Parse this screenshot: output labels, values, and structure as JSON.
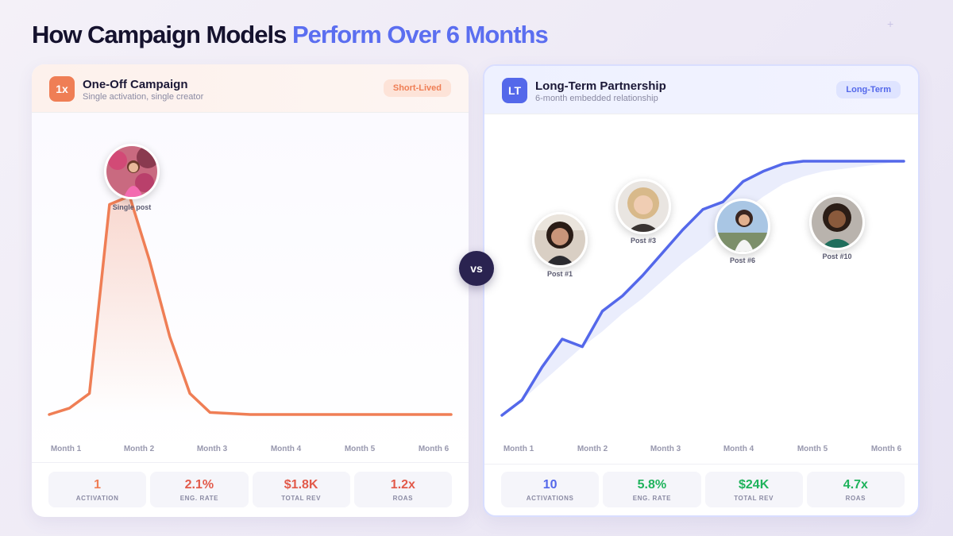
{
  "title": {
    "part1": "How Campaign Models",
    "part2": "Perform Over 6 Months"
  },
  "vs_label": "vs",
  "left": {
    "badge": "1x",
    "title": "One-Off Campaign",
    "subtitle": "Single activation, single creator",
    "pill": "Short-Lived",
    "color": "#ef7e55",
    "stats": [
      {
        "value": "1",
        "label": "ACTIVATION"
      },
      {
        "value": "2.1%",
        "label": "ENG. RATE"
      },
      {
        "value": "$1.8K",
        "label": "TOTAL REV"
      },
      {
        "value": "1.2x",
        "label": "ROAS"
      }
    ],
    "avatars": [
      {
        "label": "Single post"
      }
    ]
  },
  "right": {
    "badge": "LT",
    "title": "Long-Term Partnership",
    "subtitle": "6-month embedded relationship",
    "pill": "Long-Term",
    "color": "#5468ea",
    "stats": [
      {
        "value": "10",
        "label": "ACTIVATIONS"
      },
      {
        "value": "5.8%",
        "label": "ENG. RATE"
      },
      {
        "value": "$24K",
        "label": "TOTAL REV"
      },
      {
        "value": "4.7x",
        "label": "ROAS"
      }
    ],
    "avatars": [
      {
        "label": "Post #1"
      },
      {
        "label": "Post #3"
      },
      {
        "label": "Post #6"
      },
      {
        "label": "Post #10"
      }
    ]
  },
  "chart_data": [
    {
      "type": "area",
      "categories": [
        "Month 1",
        "Month 2",
        "Month 3",
        "Month 4",
        "Month 5",
        "Month 6"
      ],
      "x": [
        1,
        1.25,
        1.5,
        1.75,
        2,
        2.25,
        2.5,
        2.75,
        3,
        3.5,
        4,
        4.5,
        5,
        5.5,
        6
      ],
      "values": [
        0,
        3,
        10,
        100,
        104,
        73,
        37,
        10,
        1,
        0,
        0,
        0,
        0,
        0,
        0
      ],
      "ylim": [
        0,
        110
      ],
      "annotations": [
        {
          "x": 2,
          "label": "Single post"
        }
      ]
    },
    {
      "type": "line",
      "categories": [
        "Month 1",
        "Month 2",
        "Month 3",
        "Month 4",
        "Month 5",
        "Month 6"
      ],
      "x": [
        1,
        1.25,
        1.5,
        1.75,
        2,
        2.25,
        2.5,
        2.75,
        3,
        3.25,
        3.5,
        3.75,
        4,
        4.25,
        4.5,
        4.75,
        5,
        5.25,
        5.5,
        5.75,
        6
      ],
      "values": [
        0,
        6,
        19,
        30,
        27,
        41,
        47,
        55,
        64,
        73,
        81,
        84,
        92,
        96,
        99,
        100,
        100,
        100,
        100,
        100,
        100
      ],
      "upper": [
        0,
        6,
        19,
        30,
        27,
        41,
        47,
        55,
        64,
        73,
        81,
        84,
        92,
        96,
        99,
        100,
        100,
        100,
        100,
        100,
        100
      ],
      "lower": [
        0,
        6,
        13,
        20,
        27,
        33,
        40,
        46,
        53,
        60,
        66,
        73,
        80,
        86,
        91,
        94,
        96,
        97,
        98,
        99,
        100
      ],
      "ylim": [
        0,
        105
      ],
      "annotations": [
        {
          "x": 1.5,
          "label": "Post #1"
        },
        {
          "x": 2.75,
          "label": "Post #3"
        },
        {
          "x": 4,
          "label": "Post #6"
        },
        {
          "x": 5.25,
          "label": "Post #10"
        }
      ]
    }
  ]
}
